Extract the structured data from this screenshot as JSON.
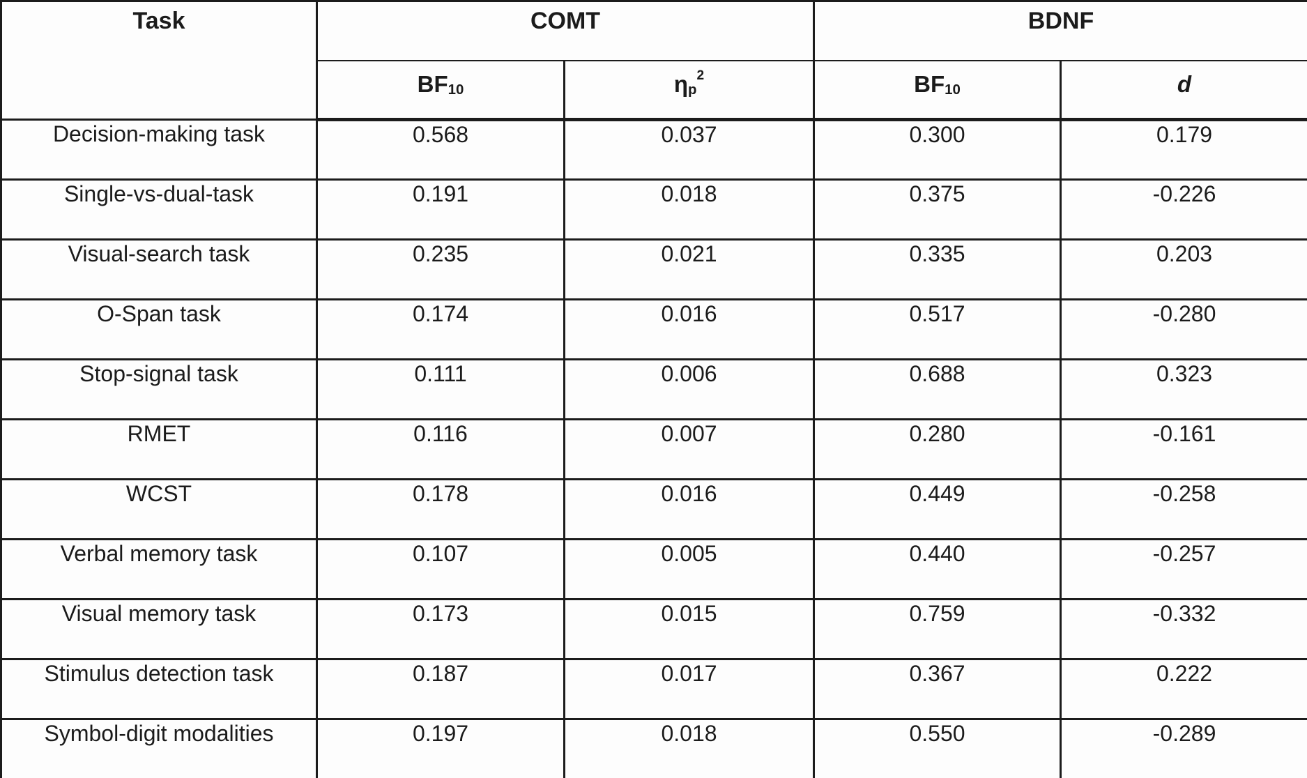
{
  "table": {
    "colors": {
      "border": "#1c1c1c",
      "text": "#1b1b1b",
      "background": "#fdfdfd"
    },
    "columns": {
      "task": "Task",
      "comt_group": "COMT",
      "bdnf_group": "BDNF",
      "bf10": {
        "base": "BF",
        "sub": "10"
      },
      "eta_p_squared": {
        "base": "η",
        "sub": "p",
        "sup": "2"
      },
      "d": "d"
    },
    "rows": [
      {
        "task": "Decision-making task",
        "comt_bf10": "0.568",
        "comt_eta2": "0.037",
        "bdnf_bf10": "0.300",
        "bdnf_d": "0.179"
      },
      {
        "task": "Single-vs-dual-task",
        "comt_bf10": "0.191",
        "comt_eta2": "0.018",
        "bdnf_bf10": "0.375",
        "bdnf_d": "-0.226"
      },
      {
        "task": "Visual-search task",
        "comt_bf10": "0.235",
        "comt_eta2": "0.021",
        "bdnf_bf10": "0.335",
        "bdnf_d": "0.203"
      },
      {
        "task": "O-Span task",
        "comt_bf10": "0.174",
        "comt_eta2": "0.016",
        "bdnf_bf10": "0.517",
        "bdnf_d": "-0.280"
      },
      {
        "task": "Stop-signal task",
        "comt_bf10": "0.111",
        "comt_eta2": "0.006",
        "bdnf_bf10": "0.688",
        "bdnf_d": "0.323"
      },
      {
        "task": "RMET",
        "comt_bf10": "0.116",
        "comt_eta2": "0.007",
        "bdnf_bf10": "0.280",
        "bdnf_d": "-0.161"
      },
      {
        "task": "WCST",
        "comt_bf10": "0.178",
        "comt_eta2": "0.016",
        "bdnf_bf10": "0.449",
        "bdnf_d": "-0.258"
      },
      {
        "task": "Verbal memory task",
        "comt_bf10": "0.107",
        "comt_eta2": "0.005",
        "bdnf_bf10": "0.440",
        "bdnf_d": "-0.257"
      },
      {
        "task": "Visual memory task",
        "comt_bf10": "0.173",
        "comt_eta2": "0.015",
        "bdnf_bf10": "0.759",
        "bdnf_d": "-0.332"
      },
      {
        "task": "Stimulus detection task",
        "comt_bf10": "0.187",
        "comt_eta2": "0.017",
        "bdnf_bf10": "0.367",
        "bdnf_d": "0.222"
      },
      {
        "task": "Symbol-digit modalities",
        "comt_bf10": "0.197",
        "comt_eta2": "0.018",
        "bdnf_bf10": "0.550",
        "bdnf_d": "-0.289"
      }
    ]
  }
}
